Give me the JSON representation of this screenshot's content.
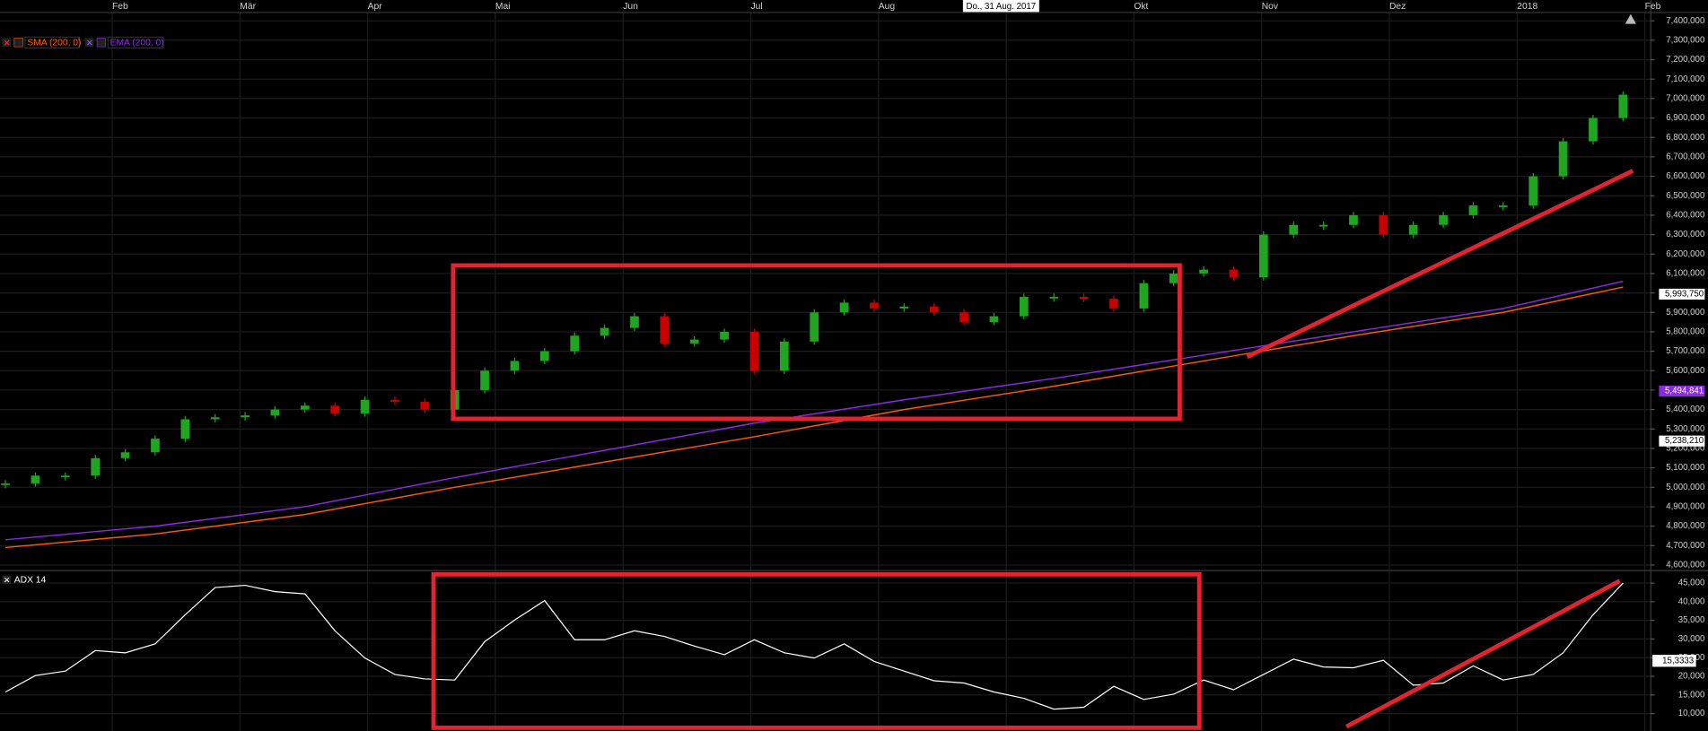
{
  "chart_data": [
    {
      "type": "candlestick",
      "crosshair_label": "Do., 31 Aug. 2017",
      "months": [
        "Feb",
        "Mär",
        "Apr",
        "Mai",
        "Jun",
        "Jul",
        "Aug",
        null,
        "Okt",
        "Nov",
        "Dez",
        "2018",
        "Feb"
      ],
      "values": [
        5020000,
        5060000,
        5060000,
        5150000,
        5180000,
        5250000,
        5350000,
        5360000,
        5370000,
        5400000,
        5420000,
        5380000,
        5450000,
        5440000,
        5400000,
        5500000,
        5600000,
        5650000,
        5700000,
        5780000,
        5820000,
        5880000,
        5740000,
        5760000,
        5800000,
        5600000,
        5750000,
        5900000,
        5950000,
        5920000,
        5930000,
        5900000,
        5850000,
        5880000,
        5980000,
        5980000,
        5970000,
        5920000,
        6050000,
        6100000,
        6120000,
        6080000,
        6300000,
        6350000,
        6350000,
        6400000,
        6300000,
        6350000,
        6400000,
        6450000,
        6450000,
        6600000,
        6780000,
        6900000,
        7020000
      ],
      "up_color": "#1fa51f",
      "down_color": "#c80000",
      "series": [
        {
          "name": "SMA (200, 0)",
          "color": "#ff5a00",
          "x": [
            0,
            5,
            10,
            15,
            20,
            25,
            30,
            35,
            40,
            45,
            50,
            54
          ],
          "values": [
            4690000,
            4760000,
            4860000,
            5000000,
            5130000,
            5260000,
            5400000,
            5520000,
            5650000,
            5780000,
            5900000,
            6030000
          ]
        },
        {
          "name": "EMA (200, 0)",
          "color": "#8a2be2",
          "x": [
            0,
            5,
            10,
            15,
            20,
            25,
            30,
            35,
            40,
            45,
            50,
            54
          ],
          "values": [
            4730000,
            4800000,
            4900000,
            5050000,
            5190000,
            5330000,
            5450000,
            5560000,
            5680000,
            5800000,
            5920000,
            6060000
          ]
        }
      ],
      "markers": [
        {
          "value": 5993750,
          "label": "5,993,750",
          "color": "#ffffff"
        },
        {
          "value": 5494841,
          "label": "5,494,841",
          "color": "#8a2be2"
        },
        {
          "value": 5238210,
          "label": "5,238,210",
          "color": "#ffffff"
        }
      ],
      "ylim": [
        4580000,
        7440000
      ],
      "yticks": [
        {
          "value": 4600000,
          "label": "4,600,000"
        },
        {
          "value": 4700000,
          "label": "4,700,000"
        },
        {
          "value": 4800000,
          "label": "4,800,000"
        },
        {
          "value": 4900000,
          "label": "4,900,000"
        },
        {
          "value": 5000000,
          "label": "5,000,000"
        },
        {
          "value": 5100000,
          "label": "5,100,000"
        },
        {
          "value": 5200000,
          "label": "5,200,000"
        },
        {
          "value": 5300000,
          "label": "5,300,000"
        },
        {
          "value": 5400000,
          "label": "5,400,000"
        },
        {
          "value": 5500000,
          "label": "5,500,000"
        },
        {
          "value": 5600000,
          "label": "5,600,000"
        },
        {
          "value": 5700000,
          "label": "5,700,000"
        },
        {
          "value": 5800000,
          "label": "5,800,000"
        },
        {
          "value": 5900000,
          "label": "5,900,000"
        },
        {
          "value": 6000000,
          "label": "6,000,000"
        },
        {
          "value": 6100000,
          "label": "6,100,000"
        },
        {
          "value": 6200000,
          "label": "6,200,000"
        },
        {
          "value": 6300000,
          "label": "6,300,000"
        },
        {
          "value": 6400000,
          "label": "6,400,000"
        },
        {
          "value": 6500000,
          "label": "6,500,000"
        },
        {
          "value": 6600000,
          "label": "6,600,000"
        },
        {
          "value": 6700000,
          "label": "6,700,000"
        },
        {
          "value": 6800000,
          "label": "6,800,000"
        },
        {
          "value": 6900000,
          "label": "6,900,000"
        },
        {
          "value": 7000000,
          "label": "7,000,000"
        },
        {
          "value": 7100000,
          "label": "7,100,000"
        },
        {
          "value": 7200000,
          "label": "7,200,000"
        },
        {
          "value": 7300000,
          "label": "7,300,000"
        },
        {
          "value": 7400000,
          "label": "7,400,000"
        }
      ],
      "grid": true
    },
    {
      "type": "line",
      "title": "ADX 14",
      "color": "#ffffff",
      "value_label": "15,3333",
      "values": [
        15800,
        20200,
        21400,
        26900,
        26300,
        28700,
        36500,
        43800,
        44400,
        42700,
        42100,
        32200,
        24900,
        20500,
        19300,
        19000,
        29300,
        35100,
        40300,
        29800,
        29800,
        32200,
        30700,
        28100,
        25800,
        29800,
        26300,
        24900,
        28700,
        24000,
        21400,
        18800,
        18200,
        15800,
        14100,
        11200,
        11700,
        17300,
        13800,
        15200,
        19000,
        16400,
        20500,
        24600,
        22500,
        22300,
        24300,
        17600,
        18200,
        22800,
        19000,
        20500,
        26300,
        36500,
        45000
      ],
      "ylim": [
        6500,
        47630
      ],
      "yticks": [
        {
          "value": 10000,
          "label": "10,000"
        },
        {
          "value": 15000,
          "label": "15,000"
        },
        {
          "value": 20000,
          "label": "20,000"
        },
        {
          "value": 25000,
          "label": "25,000"
        },
        {
          "value": 30000,
          "label": "30,000"
        },
        {
          "value": 35000,
          "label": "35,000"
        },
        {
          "value": 40000,
          "label": "40,000"
        },
        {
          "value": 45000,
          "label": "45,000"
        }
      ],
      "grid": true
    }
  ]
}
